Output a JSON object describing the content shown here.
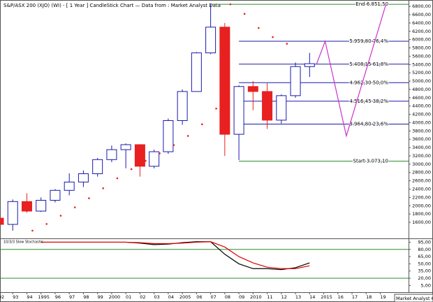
{
  "chart_data": [
    {
      "type": "candlestick",
      "title": "S&P/ASX 200 (XJO) (WI) - [ 1 Year ] CandleStick Chart — Data from : Market Analyst Data",
      "x": [
        1992,
        1993,
        1994,
        1995,
        1996,
        1997,
        1998,
        1999,
        2000,
        2001,
        2002,
        2003,
        2004,
        2005,
        2006,
        2007,
        2008,
        2009,
        2010,
        2011,
        2012,
        2013,
        2014
      ],
      "open": [
        1700,
        1550,
        2100,
        1870,
        2130,
        2370,
        2570,
        2770,
        3110,
        3350,
        3470,
        2950,
        3300,
        4050,
        4750,
        5680,
        6300,
        3720,
        4870,
        4750,
        4060,
        4650,
        5350
      ],
      "high": [
        1720,
        2150,
        2300,
        2200,
        2400,
        2780,
        2850,
        3150,
        3450,
        3500,
        3480,
        3350,
        4100,
        4800,
        5700,
        6850,
        6400,
        4900,
        5000,
        4950,
        4680,
        5450,
        5680
      ],
      "low": [
        1500,
        1400,
        1830,
        1850,
        2080,
        2250,
        2450,
        2700,
        3050,
        2900,
        2700,
        2900,
        3250,
        3950,
        4750,
        5650,
        3200,
        3100,
        4300,
        3850,
        3980,
        4600,
        5100
      ],
      "close": [
        1550,
        2100,
        1870,
        2130,
        2370,
        2570,
        2770,
        3110,
        3350,
        3470,
        2950,
        3300,
        4050,
        4750,
        5680,
        6300,
        3720,
        4870,
        4750,
        4060,
        4650,
        5350,
        5420
      ],
      "up_color": "#1a1ab0",
      "down_color": "#e82020",
      "sar": [
        null,
        null,
        1400,
        1560,
        1760,
        1960,
        2180,
        2420,
        2660,
        2880,
        3080,
        3260,
        3460,
        3680,
        3960,
        4340,
        6850,
        6620,
        6280,
        6060,
        5900,
        null,
        null
      ],
      "sar_color": "#e82020",
      "levels": [
        {
          "value": 6851.5,
          "label": "End 6.851,50",
          "color": "#2e8b2e",
          "x_from": 2007.1
        },
        {
          "value": 5959.8,
          "label": "5.959,80 76,4%",
          "color": "#1a1aa8",
          "x_from": 2009
        },
        {
          "value": 5408.15,
          "label": "5.408,15 61,8%",
          "color": "#1a1aa8",
          "x_from": 2009
        },
        {
          "value": 4962.3,
          "label": "4.962,30 50,0%",
          "color": "#1a1aa8",
          "x_from": 2009
        },
        {
          "value": 4516.45,
          "label": "4.516,45 38,2%",
          "color": "#1a1aa8",
          "x_from": 2009
        },
        {
          "value": 3964.8,
          "label": "3.964,80 23,6%",
          "color": "#1a1aa8",
          "x_from": 2009
        },
        {
          "value": 3073.1,
          "label": "Start 3.073,10",
          "color": "#2e8b2e",
          "x_from": 2009
        }
      ],
      "projection_x": [
        2014.5,
        2015.1,
        2016.6,
        2019.4
      ],
      "projection_values": [
        5420,
        5960,
        3680,
        6850
      ],
      "projection_color": "#cc33cc",
      "xlim": [
        1992.1,
        2021
      ],
      "ylim": [
        1230,
        6920
      ],
      "xticks": [
        {
          "value": 1992,
          "label": "92"
        },
        {
          "value": 1993,
          "label": "93"
        },
        {
          "value": 1994,
          "label": "94"
        },
        1995,
        {
          "value": 1996,
          "label": "96"
        },
        {
          "value": 1997,
          "label": "97"
        },
        {
          "value": 1998,
          "label": "98"
        },
        {
          "value": 1999,
          "label": "99"
        },
        2000,
        {
          "value": 2001,
          "label": "01"
        },
        {
          "value": 2002,
          "label": "02"
        },
        {
          "value": 2003,
          "label": "03"
        },
        {
          "value": 2004,
          "label": "04"
        },
        2005,
        {
          "value": 2006,
          "label": "06"
        },
        {
          "value": 2007,
          "label": "07"
        },
        {
          "value": 2008,
          "label": "08"
        },
        {
          "value": 2009,
          "label": "09"
        },
        2010,
        {
          "value": 2011,
          "label": "11"
        },
        {
          "value": 2012,
          "label": "12"
        },
        {
          "value": 2013,
          "label": "13"
        },
        {
          "value": 2014,
          "label": "14"
        },
        2015,
        {
          "value": 2016,
          "label": "16"
        },
        {
          "value": 2017,
          "label": "17"
        },
        {
          "value": 2018,
          "label": "18"
        },
        {
          "value": 2019,
          "label": "19"
        }
      ],
      "yticks": [
        {
          "value": 1600,
          "label": "1600,00"
        },
        {
          "value": 1800,
          "label": "1800,00"
        },
        {
          "value": 2000,
          "label": "2000,00"
        },
        {
          "value": 2200,
          "label": "2200,00"
        },
        {
          "value": 2400,
          "label": "2400,00"
        },
        {
          "value": 2600,
          "label": "2600,00"
        },
        {
          "value": 2800,
          "label": "2800,00"
        },
        {
          "value": 3000,
          "label": "3000,00"
        },
        {
          "value": 3200,
          "label": "3200,00"
        },
        {
          "value": 3400,
          "label": "3400,00"
        },
        {
          "value": 3600,
          "label": "3600,00"
        },
        {
          "value": 3800,
          "label": "3800,00"
        },
        {
          "value": 4000,
          "label": "4000,00"
        },
        {
          "value": 4200,
          "label": "4200,00"
        },
        {
          "value": 4400,
          "label": "4400,00"
        },
        {
          "value": 4600,
          "label": "4600,00"
        },
        {
          "value": 4800,
          "label": "4800,00"
        },
        {
          "value": 5000,
          "label": "5000,00"
        },
        {
          "value": 5200,
          "label": "5200,00"
        },
        {
          "value": 5400,
          "label": "5400,00"
        },
        {
          "value": 5600,
          "label": "5600,00"
        },
        {
          "value": 5800,
          "label": "5800,00"
        },
        {
          "value": 6000,
          "label": "6000,00"
        },
        {
          "value": 6200,
          "label": "6200,00"
        },
        {
          "value": 6400,
          "label": "6400,00"
        },
        {
          "value": 6600,
          "label": "6600,00"
        },
        {
          "value": 6800,
          "label": "6800,00"
        }
      ]
    },
    {
      "type": "line",
      "title": "10/3/3 Slow Stochastic",
      "x": [
        1995,
        1996,
        1997,
        1998,
        1999,
        2000,
        2001,
        2002,
        2003,
        2004,
        2005,
        2006,
        2007,
        2008,
        2009,
        2010,
        2011,
        2012,
        2013,
        2014
      ],
      "series": [
        {
          "color": "#000000",
          "values": [
            95,
            95,
            95,
            95,
            95,
            95,
            95,
            93,
            90,
            91,
            94,
            96,
            96,
            70,
            50,
            40,
            40,
            38,
            42,
            52
          ]
        },
        {
          "color": "#e00000",
          "values": [
            95,
            95,
            95,
            95,
            95,
            95,
            95,
            94,
            92,
            92,
            93,
            95,
            96,
            85,
            65,
            52,
            43,
            40,
            40,
            46
          ]
        }
      ],
      "hlines": [
        80,
        20
      ],
      "hline_color": "#2e8b2e",
      "ylim": [
        -9,
        100
      ],
      "yticks": [
        {
          "value": 95,
          "label": "95,00"
        },
        {
          "value": 80,
          "label": "80,00"
        },
        {
          "value": 65,
          "label": "65,00"
        },
        {
          "value": 50,
          "label": "50,00"
        },
        {
          "value": 35,
          "label": "35,00"
        },
        {
          "value": 20,
          "label": "20,00"
        },
        {
          "value": 5,
          "label": "5,00"
        }
      ]
    }
  ],
  "footer": "Market Analyst 6"
}
